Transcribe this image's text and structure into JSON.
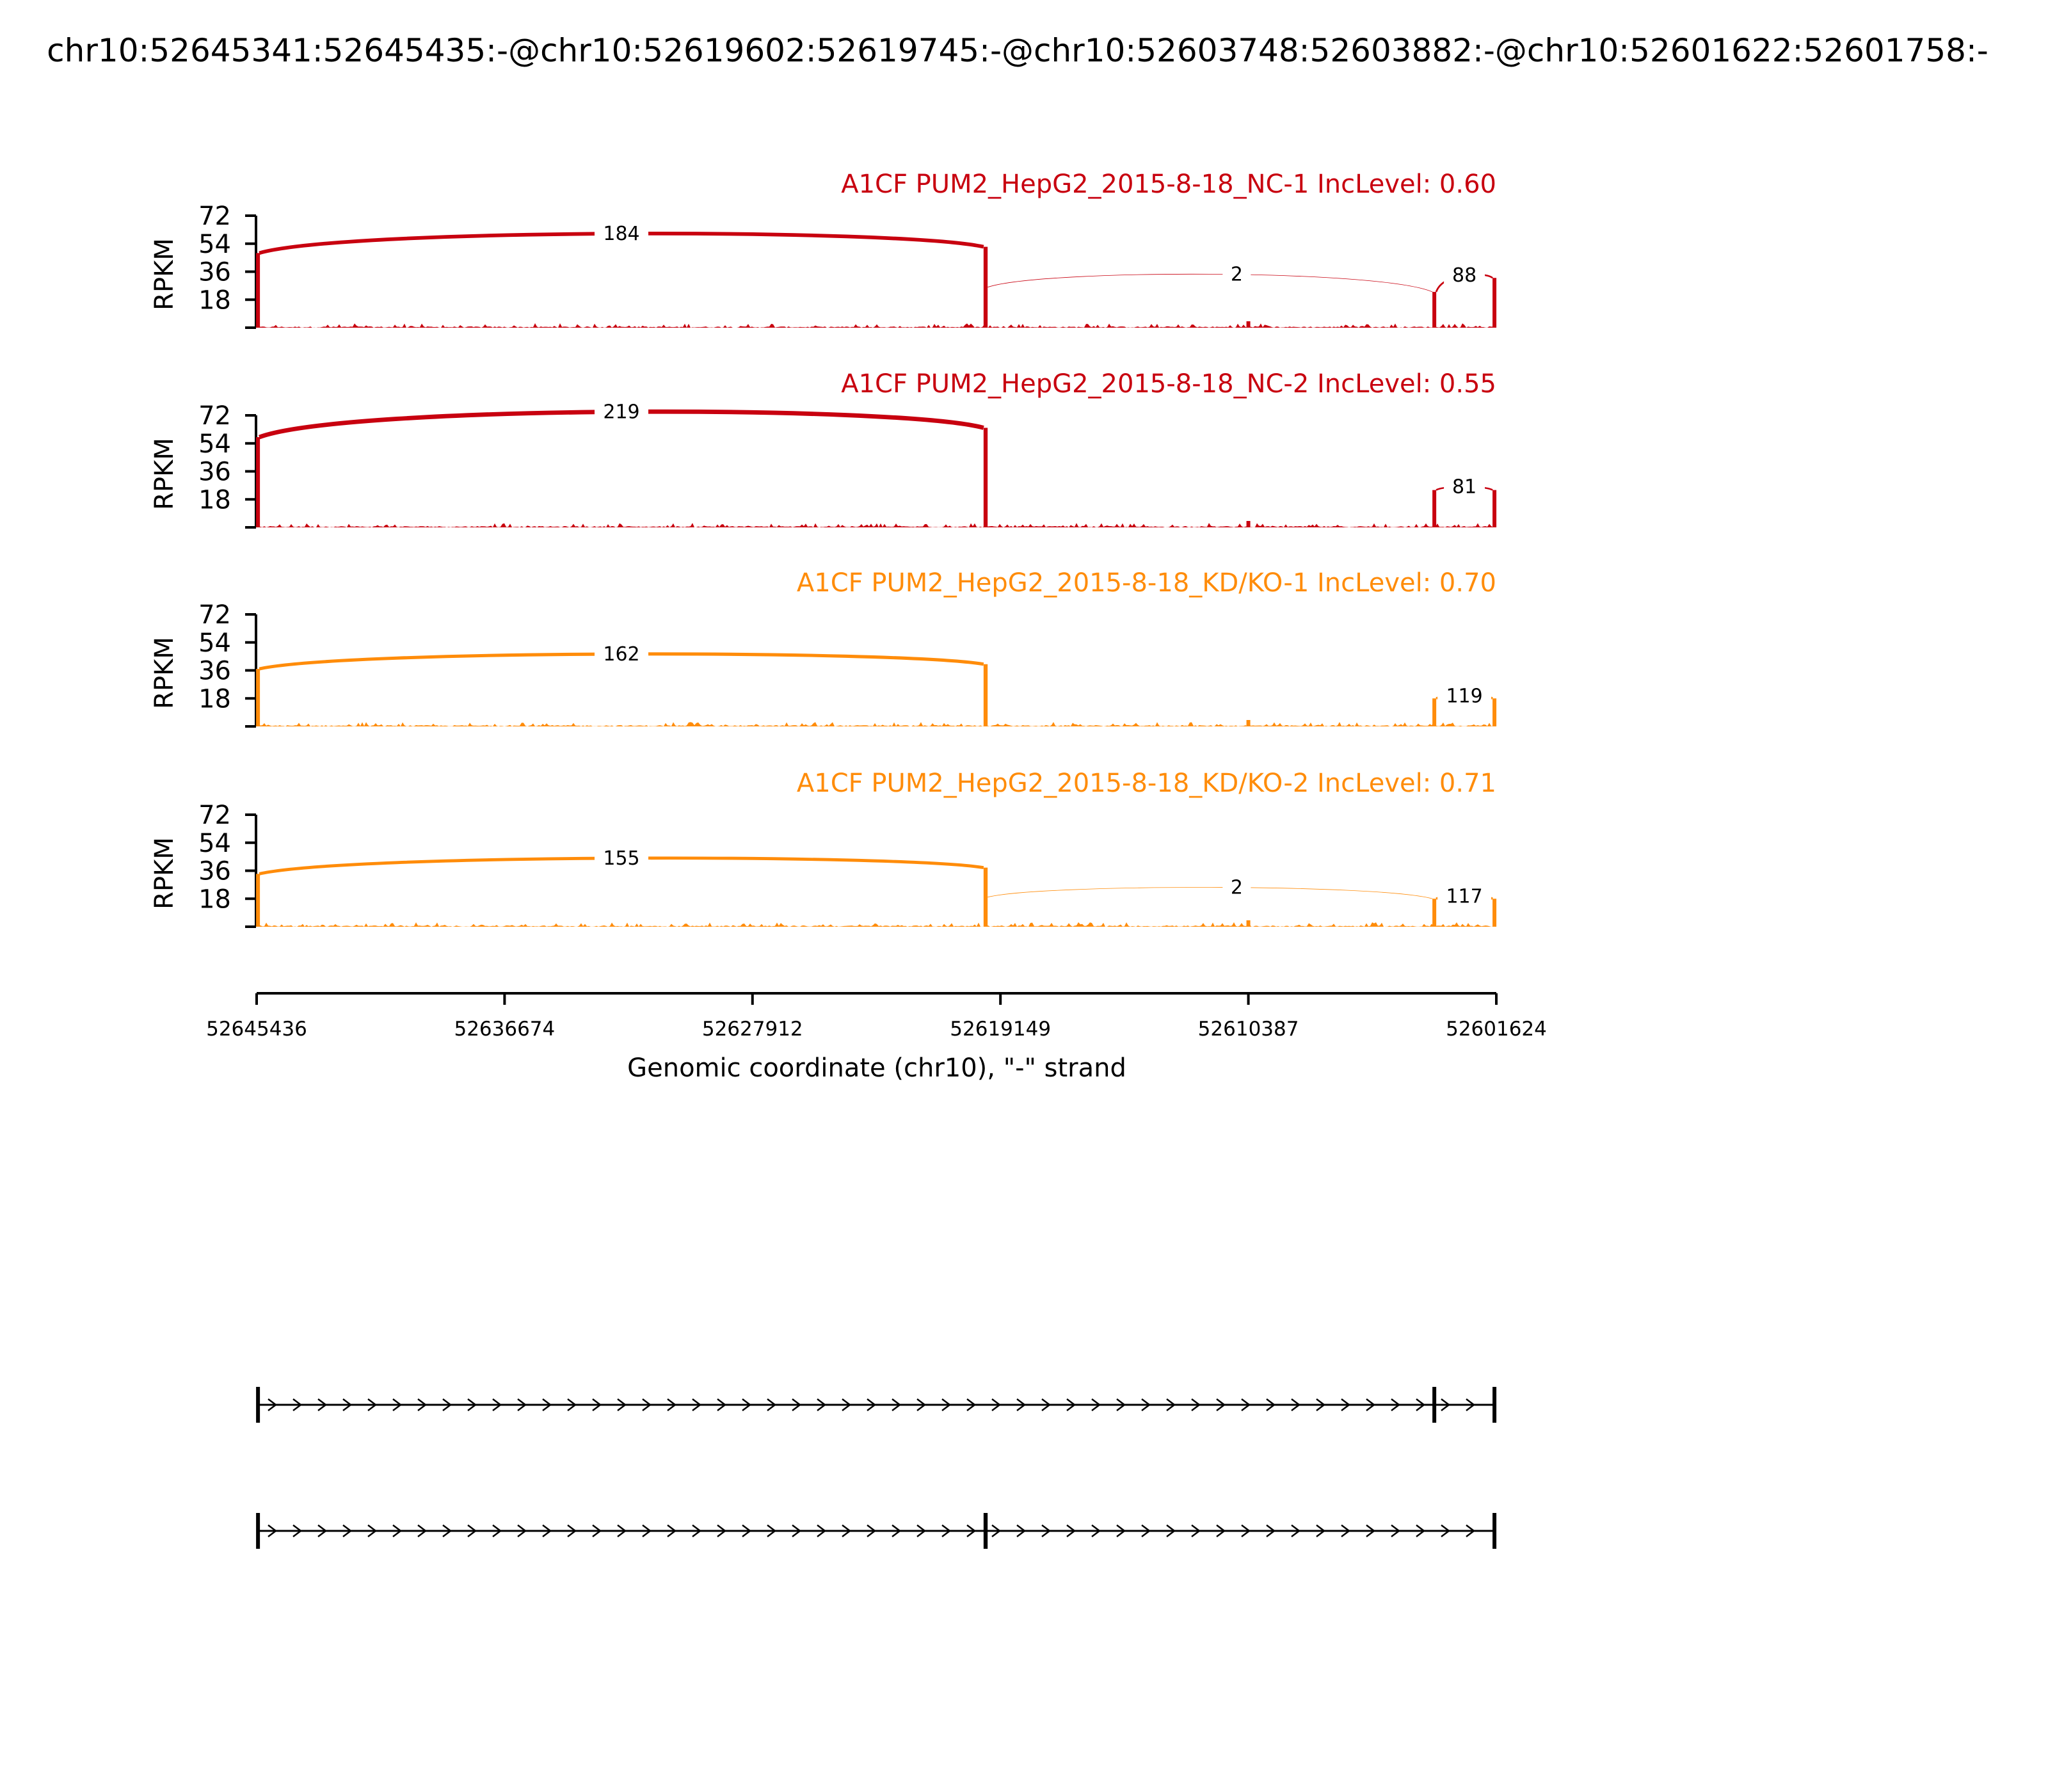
{
  "chart_data": {
    "type": "sashimi",
    "title": "chr10:52645341:52645435:-@chr10:52619602:52619745:-@chr10:52603748:52603882:-@chr10:52601622:52601758:-",
    "xlabel": "Genomic coordinate (chr10), \"-\" strand",
    "ylabel": "RPKM",
    "x_ticks": [
      "52645436",
      "52636674",
      "52627912",
      "52619149",
      "52610387",
      "52601624"
    ],
    "x_range": [
      52645436,
      52601624
    ],
    "y_ticks": [
      "72",
      "54",
      "36",
      "18"
    ],
    "ylim": [
      0,
      72
    ],
    "tracks": [
      {
        "name": "A1CF PUM2_HepG2_2015-8-18_NC-1 IncLevel: 0.60",
        "color": "#c8000f",
        "exon_heights": {
          "e1": 48,
          "e2": 52,
          "e3": 23,
          "e4": 32
        },
        "junctions": [
          {
            "from": 52645341,
            "to": 52619745,
            "count": "184",
            "weight": 184
          },
          {
            "from": 52619602,
            "to": 52603882,
            "count": "2",
            "weight": 2
          },
          {
            "from": 52603748,
            "to": 52601758,
            "count": "88",
            "weight": 88
          }
        ]
      },
      {
        "name": "A1CF PUM2_HepG2_2015-8-18_NC-2 IncLevel: 0.55",
        "color": "#c8000f",
        "exon_heights": {
          "e1": 58,
          "e2": 64,
          "e3": 24,
          "e4": 24
        },
        "junctions": [
          {
            "from": 52645341,
            "to": 52619745,
            "count": "219",
            "weight": 219
          },
          {
            "from": 52603748,
            "to": 52601758,
            "count": "81",
            "weight": 81
          }
        ]
      },
      {
        "name": "A1CF PUM2_HepG2_2015-8-18_KD/KO-1 IncLevel: 0.70",
        "color": "#ff8c0a",
        "exon_heights": {
          "e1": 37,
          "e2": 40,
          "e3": 18,
          "e4": 18
        },
        "junctions": [
          {
            "from": 52645341,
            "to": 52619745,
            "count": "162",
            "weight": 162
          },
          {
            "from": 52603748,
            "to": 52601758,
            "count": "119",
            "weight": 119
          }
        ]
      },
      {
        "name": "A1CF PUM2_HepG2_2015-8-18_KD/KO-2 IncLevel: 0.71",
        "color": "#ff8c0a",
        "exon_heights": {
          "e1": 34,
          "e2": 38,
          "e3": 18,
          "e4": 18
        },
        "junctions": [
          {
            "from": 52645341,
            "to": 52619745,
            "count": "155",
            "weight": 155
          },
          {
            "from": 52619602,
            "to": 52603882,
            "count": "2",
            "weight": 2
          },
          {
            "from": 52603748,
            "to": 52601758,
            "count": "117",
            "weight": 117
          }
        ]
      }
    ],
    "gene_models": [
      {
        "exons": [
          [
            52645341,
            52645435
          ],
          [
            52603748,
            52603882
          ],
          [
            52601622,
            52601758
          ]
        ]
      },
      {
        "exons": [
          [
            52645341,
            52645435
          ],
          [
            52619602,
            52619745
          ],
          [
            52601622,
            52601758
          ]
        ]
      }
    ]
  }
}
